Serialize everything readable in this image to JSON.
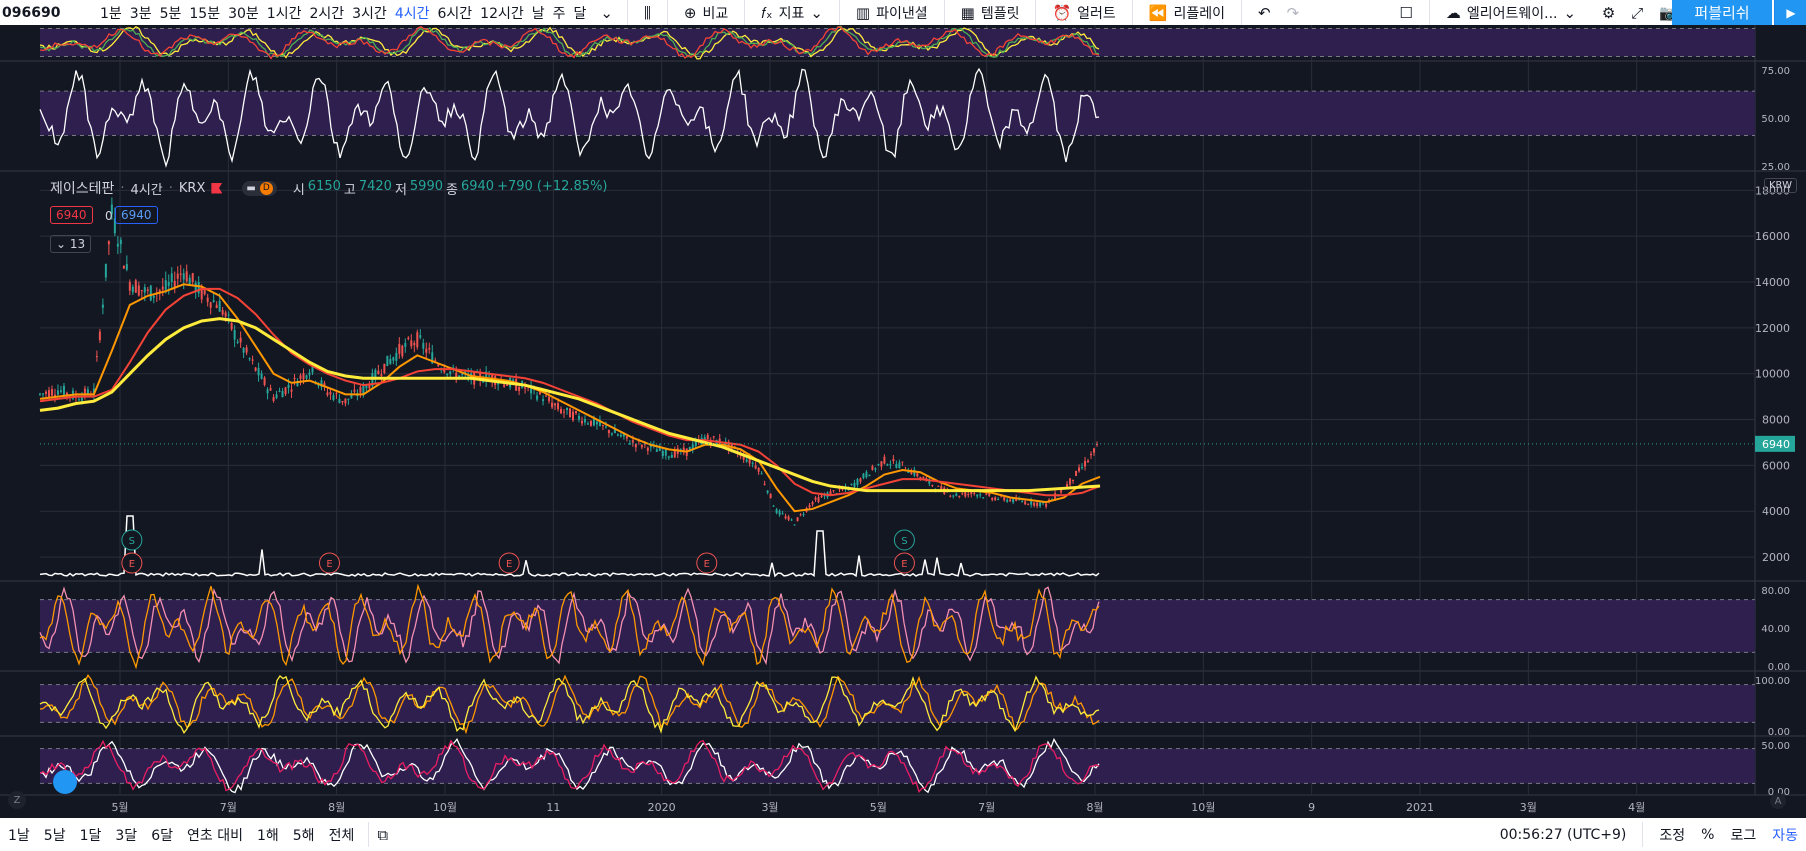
{
  "toolbar": {
    "symbol": "096690",
    "timeframes": [
      {
        "label": "1분",
        "active": false
      },
      {
        "label": "3분",
        "active": false
      },
      {
        "label": "5분",
        "active": false
      },
      {
        "label": "15분",
        "active": false
      },
      {
        "label": "30분",
        "active": false
      },
      {
        "label": "1시간",
        "active": false
      },
      {
        "label": "2시간",
        "active": false
      },
      {
        "label": "3시간",
        "active": false
      },
      {
        "label": "4시간",
        "active": true
      },
      {
        "label": "6시간",
        "active": false
      },
      {
        "label": "12시간",
        "active": false
      },
      {
        "label": "날",
        "active": false
      },
      {
        "label": "주",
        "active": false
      },
      {
        "label": "달",
        "active": false
      }
    ],
    "compare_label": "비교",
    "indicators_label": "지표",
    "panels_label": "파이낸셜",
    "templates_label": "템플릿",
    "alert_label": "얼러트",
    "replay_label": "리플레이",
    "layout_label": "엘리어트웨이...",
    "publish_label": "퍼블리쉬"
  },
  "legend": {
    "symbol_name": "제이스테판",
    "interval": "4시간",
    "exchange": "KRX",
    "open_label": "시",
    "open": "6150",
    "high_label": "고",
    "high": "7420",
    "low_label": "저",
    "low": "5990",
    "close_label": "종",
    "close": "6940",
    "change": "+790 (+12.85%)",
    "box_red": "6940",
    "box_zero": "0",
    "box_blue": "6940",
    "collapse_count": "13",
    "currency": "KRW",
    "pill_letter": "D"
  },
  "colors": {
    "background": "#131722",
    "grid": "#2a2e39",
    "up": "#26a69a",
    "down": "#ef5350",
    "ma_fast": "#ff9800",
    "ma_mid": "#f44336",
    "ma_slow": "#ffeb3b",
    "volume": "#ffffff",
    "oscillator_band": "#2e1f4f",
    "price_line": "#26a69a"
  },
  "chart_data": {
    "type": "line",
    "title": "",
    "series": [
      {
        "values": [
          9100,
          9300,
          9000,
          9200,
          17000,
          14000,
          13500,
          13700,
          14500,
          13500,
          13000,
          11500,
          10200,
          9000,
          9500,
          10200,
          9200,
          8800,
          9300,
          10200,
          11000,
          11500,
          10600,
          10000,
          9800,
          9900,
          9600,
          9400,
          9000,
          8400,
          8100,
          7800,
          7400,
          7000,
          6800,
          6500,
          6600,
          7200,
          7000,
          6500,
          5900,
          4000,
          3500,
          4400,
          4800,
          5000,
          5600,
          6200,
          6000,
          5500,
          5000,
          4700,
          4800,
          4600,
          4500,
          4400,
          4300,
          5000,
          5900,
          6940
        ]
      },
      {
        "values": [
          8900,
          9000,
          9100,
          9100,
          11000,
          13000,
          13400,
          13600,
          13900,
          13800,
          13400,
          12400,
          11200,
          10000,
          9600,
          9700,
          9400,
          9100,
          9100,
          9600,
          10300,
          10800,
          10500,
          10200,
          9900,
          9800,
          9700,
          9500,
          9200,
          8800,
          8400,
          8000,
          7600,
          7200,
          6900,
          6700,
          6600,
          6900,
          6900,
          6700,
          6200,
          5000,
          4000,
          4100,
          4400,
          4700,
          5100,
          5600,
          5800,
          5700,
          5300,
          5000,
          4900,
          4800,
          4600,
          4500,
          4400,
          4600,
          5200,
          5500
        ]
      },
      {
        "values": [
          8800,
          8900,
          9000,
          9000,
          9300,
          10500,
          11800,
          12800,
          13400,
          13700,
          13700,
          13300,
          12600,
          11700,
          10900,
          10400,
          10000,
          9700,
          9500,
          9600,
          9800,
          10100,
          10200,
          10200,
          10100,
          10000,
          9900,
          9800,
          9600,
          9300,
          9000,
          8700,
          8300,
          7900,
          7600,
          7300,
          7100,
          7100,
          7000,
          6900,
          6600,
          6000,
          5200,
          4800,
          4700,
          4800,
          5000,
          5200,
          5400,
          5400,
          5300,
          5200,
          5100,
          5000,
          4900,
          4800,
          4700,
          4700,
          4800,
          5100
        ]
      },
      {
        "values": [
          8400,
          8500,
          8700,
          8800,
          9200,
          10000,
          10800,
          11500,
          12000,
          12300,
          12400,
          12300,
          12000,
          11500,
          11000,
          10500,
          10100,
          9900,
          9800,
          9800,
          9800,
          9800,
          9800,
          9800,
          9800,
          9700,
          9600,
          9500,
          9300,
          9100,
          8900,
          8600,
          8300,
          8000,
          7700,
          7400,
          7200,
          7000,
          6800,
          6500,
          6200,
          5900,
          5600,
          5300,
          5100,
          5000,
          4900,
          4900,
          4900,
          4900,
          4900,
          4900,
          4900,
          4900,
          4900,
          4900,
          4950,
          5000,
          5050,
          5100
        ]
      }
    ],
    "ylim": [
      1000,
      18800
    ],
    "price_ticks": [
      "18000",
      "16000",
      "14000",
      "12000",
      "10000",
      "8000",
      "6000",
      "4000",
      "2000"
    ],
    "last_price": "6940",
    "x_ticks": [
      "5월",
      "7월",
      "8월",
      "10월",
      "11",
      "2020",
      "3월",
      "5월",
      "7월",
      "8월",
      "10월",
      "9",
      "2021",
      "3월",
      "4월"
    ],
    "rsi_ticks": [
      "75.00",
      "50.00",
      "25.00"
    ],
    "stoch_ticks": [
      "80.00",
      "40.00",
      "0.00"
    ],
    "osc3_ticks": [
      "100.00",
      "0.00"
    ],
    "osc4_ticks": [
      "50.00",
      "0.00"
    ],
    "event_markers": [
      {
        "letter": "S",
        "bar": 4
      },
      {
        "letter": "E",
        "bar": 4
      },
      {
        "letter": "E",
        "bar": 15
      },
      {
        "letter": "E",
        "bar": 25
      },
      {
        "letter": "E",
        "bar": 36
      },
      {
        "letter": "S",
        "bar": 47
      },
      {
        "letter": "E",
        "bar": 47
      }
    ]
  },
  "bottom": {
    "ranges": [
      "1날",
      "5날",
      "1달",
      "3달",
      "6달",
      "연초 대비",
      "1해",
      "5해",
      "전체"
    ],
    "clock": "00:56:27 (UTC+9)",
    "adjust_label": "조정",
    "percent_label": "%",
    "log_label": "로그",
    "auto_label": "자동",
    "z_label": "Z",
    "a_label": "A"
  }
}
